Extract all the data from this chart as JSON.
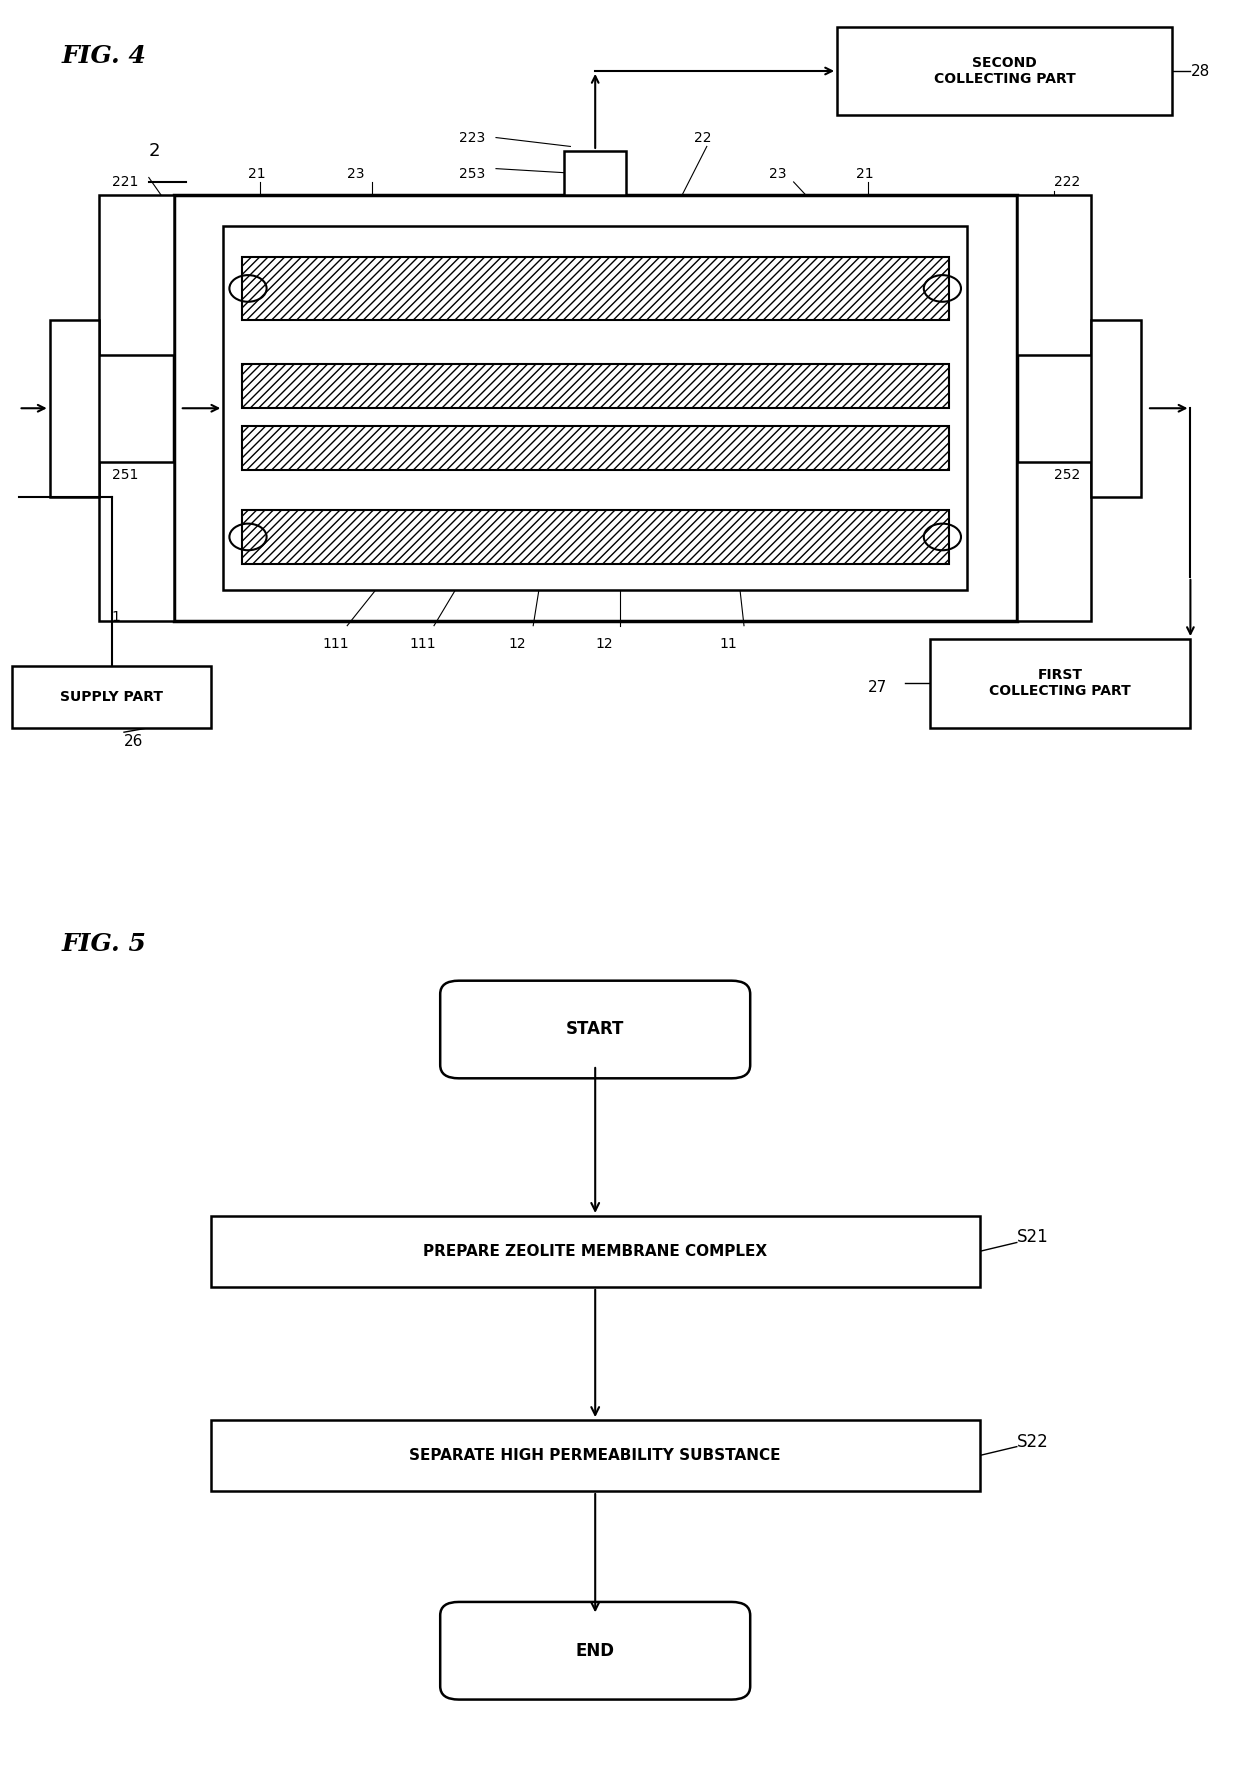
{
  "fig4_title": "FIG. 4",
  "fig5_title": "FIG. 5",
  "bg_color": "#ffffff",
  "line_color": "#000000",
  "fig4_label_2": "2",
  "fig4_label_28": "28",
  "fig4_label_27": "27",
  "fig4_label_26": "26",
  "fig4_label_22": "22",
  "fig4_label_221": "221",
  "fig4_label_222": "222",
  "fig4_label_223": "223",
  "fig4_label_253": "253",
  "fig4_label_251": "251",
  "fig4_label_252": "252",
  "fig4_label_21a": "21",
  "fig4_label_21b": "21",
  "fig4_label_23a": "23",
  "fig4_label_23b": "23",
  "fig4_label_1": "1",
  "fig4_label_11": "11",
  "fig4_label_12a": "12",
  "fig4_label_12b": "12",
  "fig4_label_111a": "111",
  "fig4_label_111b": "111",
  "fig4_box_supply": "SUPPLY PART",
  "fig4_box_first": "FIRST\nCOLLECTING PART",
  "fig4_box_second": "SECOND\nCOLLECTING PART",
  "fig5_box_start": "START",
  "fig5_box_s21": "PREPARE ZEOLITE MEMBRANE COMPLEX",
  "fig5_box_s22": "SEPARATE HIGH PERMEABILITY SUBSTANCE",
  "fig5_box_end": "END",
  "fig5_label_s21": "S21",
  "fig5_label_s22": "S22"
}
